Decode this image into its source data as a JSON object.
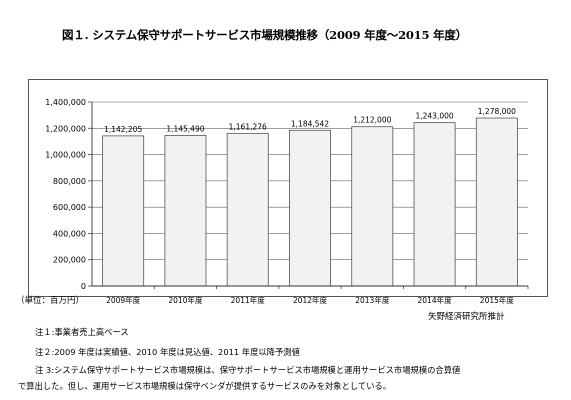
{
  "title": "図１. システム保守サポートサービス市場規模推移（2009 年度～2015 年度）",
  "unit_label": "（単位：百万円）",
  "source": "矢野経済研究所推計",
  "notes": [
    "注１:事業者売上高ベース",
    "注２:2009 年度は実績値、2010 年度は見込値、2011 年度以降予測値",
    "注 3:システム保守サポートサービス市場規模は、保守サポートサービス市場規模と運用サービス市場規模の合算値",
    "で算出した。但し、運用サービス市場規模は保守ベンダが提供するサービスのみを対象としている。"
  ],
  "chart_data": {
    "type": "bar",
    "categories": [
      "2009年度",
      "2010年度",
      "2011年度",
      "2012年度",
      "2013年度",
      "2014年度",
      "2015年度"
    ],
    "values": [
      1142205,
      1145490,
      1161276,
      1184542,
      1212000,
      1243000,
      1278000
    ],
    "value_labels": [
      "1,142,205",
      "1,145,490",
      "1,161,276",
      "1,184,542",
      "1,212,000",
      "1,243,000",
      "1,278,000"
    ],
    "yticks": [
      0,
      200000,
      400000,
      600000,
      800000,
      1000000,
      1200000,
      1400000
    ],
    "ytick_labels": [
      "0",
      "200,000",
      "400,000",
      "600,000",
      "800,000",
      "1,000,000",
      "1,200,000",
      "1,400,000"
    ],
    "ylim": [
      0,
      1400000
    ],
    "grid": true,
    "legend": "none",
    "bar_color": "#f2f2f2",
    "bar_stroke": "#555555"
  }
}
